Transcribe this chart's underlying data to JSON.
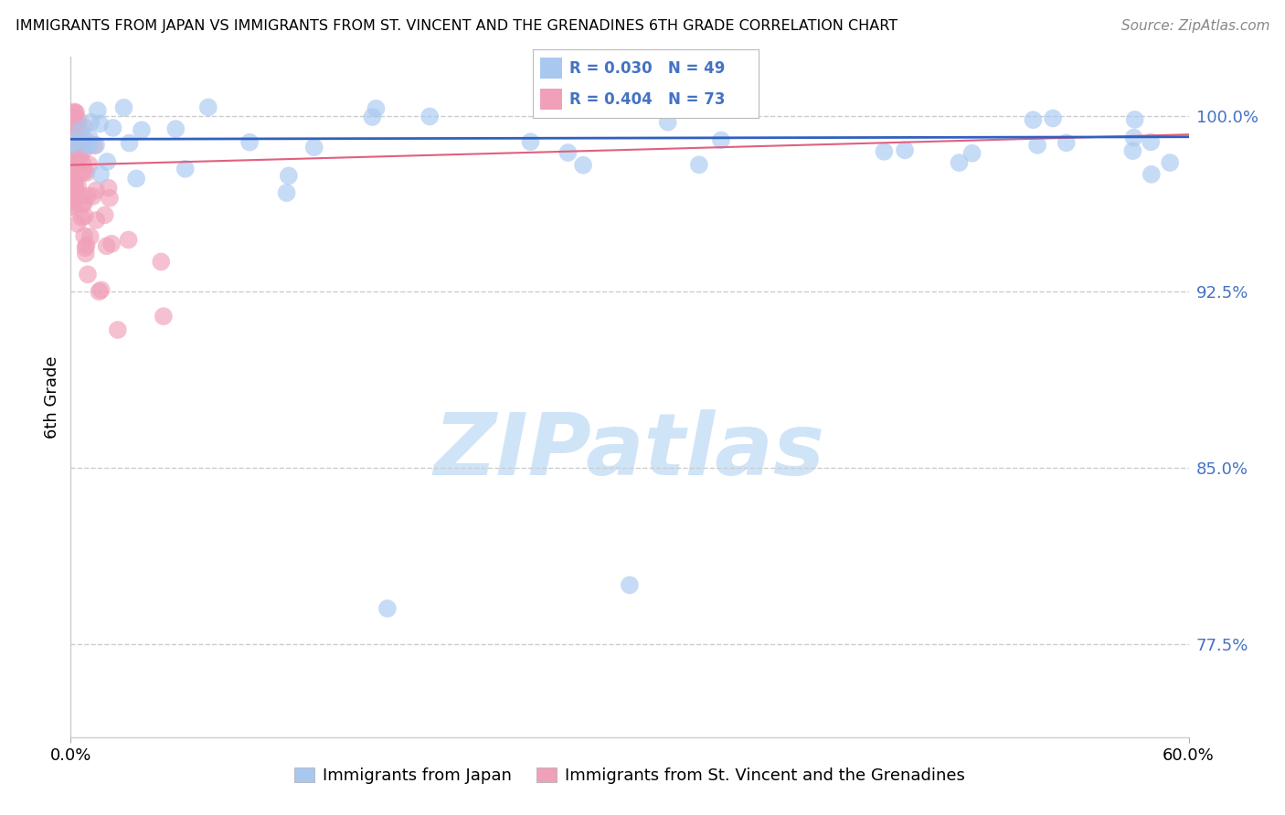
{
  "title": "IMMIGRANTS FROM JAPAN VS IMMIGRANTS FROM ST. VINCENT AND THE GRENADINES 6TH GRADE CORRELATION CHART",
  "source": "Source: ZipAtlas.com",
  "xlabel_japan": "Immigrants from Japan",
  "xlabel_stvincent": "Immigrants from St. Vincent and the Grenadines",
  "ylabel": "6th Grade",
  "xlim": [
    0.0,
    0.6
  ],
  "ylim": [
    0.735,
    1.025
  ],
  "yticks": [
    0.775,
    0.85,
    0.925,
    1.0
  ],
  "ytick_labels": [
    "77.5%",
    "85.0%",
    "92.5%",
    "100.0%"
  ],
  "blue_R": 0.03,
  "blue_N": 49,
  "pink_R": 0.404,
  "pink_N": 73,
  "blue_color": "#a8c8f0",
  "pink_color": "#f0a0b8",
  "trend_blue_color": "#3060c0",
  "trend_pink_color": "#e06080",
  "axis_label_color": "#4472c4",
  "background_color": "#ffffff",
  "watermark_text": "ZIPatlas",
  "watermark_color": "#d0e4f8",
  "grid_color": "#cccccc",
  "legend_blue_label": "R = 0.030   N = 49",
  "legend_pink_label": "R = 0.404   N = 73"
}
